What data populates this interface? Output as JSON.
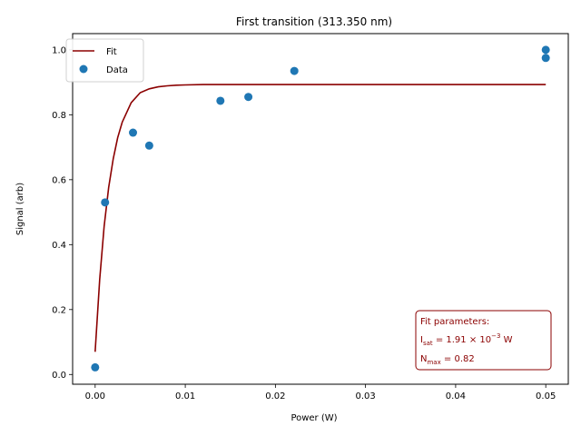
{
  "chart_data": {
    "type": "scatter",
    "title": "First transition (313.350 nm)",
    "xlabel": "Power (W)",
    "ylabel": "Signal (arb)",
    "xlim": [
      -0.0025,
      0.0525
    ],
    "ylim": [
      -0.03,
      1.05
    ],
    "xticks": [
      0.0,
      0.01,
      0.02,
      0.03,
      0.04,
      0.05
    ],
    "xtick_labels": [
      "0.00",
      "0.01",
      "0.02",
      "0.03",
      "0.04",
      "0.05"
    ],
    "yticks": [
      0.0,
      0.2,
      0.4,
      0.6,
      0.8,
      1.0
    ],
    "ytick_labels": [
      "0.0",
      "0.2",
      "0.4",
      "0.6",
      "0.8",
      "1.0"
    ],
    "grid": false,
    "legend_position": "upper-left",
    "series": [
      {
        "name": "Fit",
        "kind": "line",
        "color": "#8b0000",
        "x": [
          0.0,
          0.0005,
          0.001,
          0.0015,
          0.002,
          0.0025,
          0.003,
          0.004,
          0.005,
          0.006,
          0.007,
          0.008,
          0.009,
          0.01,
          0.012,
          0.015,
          0.02,
          0.03,
          0.04,
          0.05
        ],
        "y": [
          0.07,
          0.292,
          0.456,
          0.576,
          0.664,
          0.729,
          0.777,
          0.837,
          0.868,
          0.88,
          0.886,
          0.889,
          0.891,
          0.892,
          0.893,
          0.893,
          0.893,
          0.893,
          0.893,
          0.893
        ]
      },
      {
        "name": "Data",
        "kind": "scatter",
        "color": "#1f77b4",
        "x": [
          0.0,
          0.0011,
          0.0042,
          0.006,
          0.0139,
          0.017,
          0.0221,
          0.05,
          0.05
        ],
        "y": [
          0.022,
          0.53,
          0.745,
          0.705,
          0.843,
          0.855,
          0.935,
          1.0,
          0.975
        ]
      }
    ],
    "annotation": {
      "title": "Fit parameters:",
      "line1": {
        "label": "I",
        "sub": "sat",
        "text": " = 1.91 × 10",
        "sup": "−3",
        "unit": " W"
      },
      "line2": {
        "label": "N",
        "sub": "max",
        "text": " = 0.82"
      },
      "border_color": "#8b0000"
    }
  }
}
